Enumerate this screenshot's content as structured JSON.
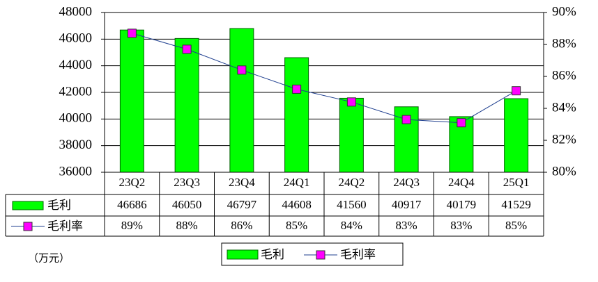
{
  "chart_data": {
    "type": "bar-line",
    "categories": [
      "23Q2",
      "23Q3",
      "23Q4",
      "24Q1",
      "24Q2",
      "24Q3",
      "24Q4",
      "25Q1"
    ],
    "series": [
      {
        "name": "毛利",
        "type": "bar",
        "color": "#00ff00",
        "values": [
          46686,
          46050,
          46797,
          44608,
          41560,
          40917,
          40179,
          41529
        ]
      },
      {
        "name": "毛利率",
        "type": "line",
        "axis": "y2",
        "color": "#ff00ff",
        "line_color": "#1f3f8f",
        "values": [
          88.7,
          87.7,
          86.4,
          85.2,
          84.4,
          83.3,
          83.1,
          85.1
        ],
        "value_labels": [
          "89%",
          "88%",
          "86%",
          "85%",
          "84%",
          "83%",
          "83%",
          "85%"
        ]
      }
    ],
    "ylim": [
      36000,
      48000
    ],
    "yticks": [
      36000,
      38000,
      40000,
      42000,
      44000,
      46000,
      48000
    ],
    "y2lim": [
      80,
      90
    ],
    "y2ticks": [
      {
        "value": 80,
        "label": "80%"
      },
      {
        "value": 82,
        "label": "82%"
      },
      {
        "value": 84,
        "label": "84%"
      },
      {
        "value": 86,
        "label": "86%"
      },
      {
        "value": 88,
        "label": "88%"
      },
      {
        "value": 90,
        "label": "90%"
      }
    ],
    "grid": true,
    "legend": "bottom",
    "unit_note": "（万元）"
  }
}
